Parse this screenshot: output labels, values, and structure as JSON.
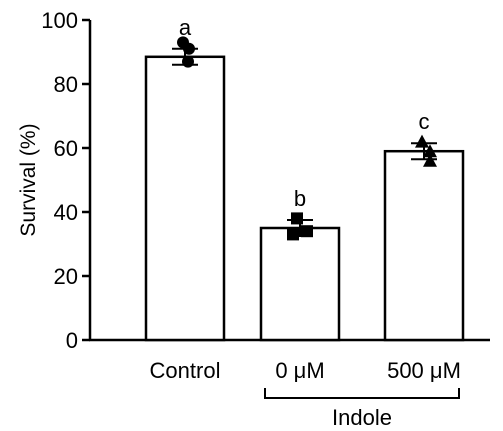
{
  "chart_data": {
    "type": "bar",
    "title": "",
    "xlabel": "",
    "ylabel": "Survival (%)",
    "ylim": [
      0,
      100
    ],
    "yticks": [
      0,
      20,
      40,
      60,
      80,
      100
    ],
    "categories": [
      "Control",
      "0 μM",
      "500 μM"
    ],
    "values": [
      88.5,
      35,
      59
    ],
    "errors": [
      2.5,
      2.5,
      2.5
    ],
    "significance_letters": [
      "a",
      "b",
      "c"
    ],
    "markers": [
      "circle",
      "square",
      "triangle"
    ],
    "points": [
      [
        93,
        91,
        87
      ],
      [
        38,
        34,
        33
      ],
      [
        62,
        59,
        56
      ]
    ],
    "group_bracket": {
      "label": "Indole",
      "categories": [
        "0 μM",
        "500 μM"
      ]
    },
    "colors": {
      "bar_fill": "#ffffff",
      "bar_stroke": "#000000",
      "marker": "#000000"
    },
    "grid": false
  }
}
